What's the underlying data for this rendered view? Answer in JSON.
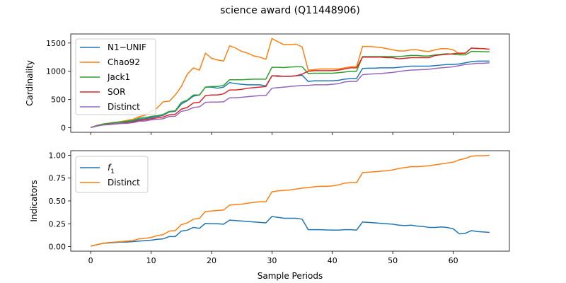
{
  "figure_title": "science award (Q11448906)",
  "chart_data": [
    {
      "type": "line",
      "xlabel": "",
      "ylabel": "Cardinality",
      "xlim": [
        -3.3,
        69.3
      ],
      "ylim": [
        -80,
        1660
      ],
      "xticks": [
        0,
        10,
        20,
        30,
        40,
        50,
        60
      ],
      "yticks": [
        0,
        500,
        1000,
        1500
      ],
      "ytick_labels": [
        "0",
        "500",
        "1000",
        "1500"
      ],
      "show_xtick_labels": false,
      "legend": "upper left",
      "grid": false,
      "series": [
        {
          "name": "N1−UNIF",
          "color": "#1f77b4",
          "x": [
            0,
            1,
            2,
            3,
            4,
            5,
            6,
            7,
            8,
            9,
            10,
            11,
            12,
            13,
            14,
            15,
            16,
            17,
            18,
            19,
            20,
            21,
            22,
            23,
            24,
            25,
            26,
            27,
            28,
            29,
            30,
            31,
            32,
            33,
            34,
            35,
            36,
            37,
            38,
            39,
            40,
            41,
            42,
            43,
            44,
            45,
            46,
            47,
            48,
            49,
            50,
            51,
            52,
            53,
            54,
            55,
            56,
            57,
            58,
            59,
            60,
            61,
            62,
            63,
            64,
            65,
            66
          ],
          "y": [
            5,
            35,
            60,
            75,
            90,
            100,
            105,
            115,
            150,
            160,
            180,
            200,
            220,
            280,
            290,
            420,
            480,
            560,
            580,
            720,
            720,
            700,
            720,
            800,
            780,
            770,
            760,
            760,
            760,
            740,
            920,
            920,
            910,
            910,
            920,
            930,
            820,
            830,
            830,
            830,
            830,
            840,
            860,
            870,
            870,
            1050,
            1055,
            1055,
            1060,
            1060,
            1060,
            1070,
            1080,
            1090,
            1090,
            1090,
            1090,
            1100,
            1110,
            1120,
            1120,
            1130,
            1150,
            1170,
            1180,
            1180,
            1180
          ]
        },
        {
          "name": "Chao92",
          "color": "#ff7f0e",
          "x": [
            0,
            1,
            2,
            3,
            4,
            5,
            6,
            7,
            8,
            9,
            10,
            11,
            12,
            13,
            14,
            15,
            16,
            17,
            18,
            19,
            20,
            21,
            22,
            23,
            24,
            25,
            26,
            27,
            28,
            29,
            30,
            31,
            32,
            33,
            34,
            35,
            36,
            37,
            38,
            39,
            40,
            41,
            42,
            43,
            44,
            45,
            46,
            47,
            48,
            49,
            50,
            51,
            52,
            53,
            54,
            55,
            56,
            57,
            58,
            59,
            60,
            61,
            62,
            63,
            64,
            65,
            66
          ],
          "y": [
            5,
            40,
            65,
            80,
            95,
            110,
            130,
            150,
            195,
            220,
            290,
            350,
            460,
            470,
            580,
            730,
            950,
            1060,
            1020,
            1320,
            1230,
            1200,
            1180,
            1450,
            1410,
            1350,
            1320,
            1270,
            1250,
            1210,
            1580,
            1520,
            1470,
            1470,
            1480,
            1430,
            1020,
            1030,
            1040,
            1040,
            1040,
            1040,
            1060,
            1080,
            1080,
            1440,
            1440,
            1430,
            1420,
            1400,
            1380,
            1360,
            1360,
            1380,
            1380,
            1360,
            1350,
            1380,
            1400,
            1400,
            1380,
            1310,
            1320,
            1410,
            1400,
            1400,
            1390
          ]
        },
        {
          "name": "Jack1",
          "color": "#2ca02c",
          "x": [
            0,
            1,
            2,
            3,
            4,
            5,
            6,
            7,
            8,
            9,
            10,
            11,
            12,
            13,
            14,
            15,
            16,
            17,
            18,
            19,
            20,
            21,
            22,
            23,
            24,
            25,
            26,
            27,
            28,
            29,
            30,
            31,
            32,
            33,
            34,
            35,
            36,
            37,
            38,
            39,
            40,
            41,
            42,
            43,
            44,
            45,
            46,
            47,
            48,
            49,
            50,
            51,
            52,
            53,
            54,
            55,
            56,
            57,
            58,
            59,
            60,
            61,
            62,
            63,
            64,
            65,
            66
          ],
          "y": [
            5,
            40,
            65,
            80,
            95,
            105,
            115,
            130,
            170,
            180,
            200,
            215,
            235,
            290,
            300,
            450,
            490,
            580,
            580,
            720,
            730,
            730,
            750,
            850,
            850,
            850,
            855,
            860,
            860,
            860,
            1070,
            1070,
            1065,
            1075,
            1080,
            1080,
            960,
            965,
            965,
            965,
            965,
            975,
            985,
            1000,
            1000,
            1260,
            1260,
            1260,
            1260,
            1260,
            1260,
            1260,
            1270,
            1280,
            1280,
            1270,
            1270,
            1290,
            1300,
            1310,
            1300,
            1290,
            1290,
            1350,
            1350,
            1345,
            1345
          ]
        },
        {
          "name": "SOR",
          "color": "#d62728",
          "x": [
            0,
            1,
            2,
            3,
            4,
            5,
            6,
            7,
            8,
            9,
            10,
            11,
            12,
            13,
            14,
            15,
            16,
            17,
            18,
            19,
            20,
            21,
            22,
            23,
            24,
            25,
            26,
            27,
            28,
            29,
            30,
            31,
            32,
            33,
            34,
            35,
            36,
            37,
            38,
            39,
            40,
            41,
            42,
            43,
            44,
            45,
            46,
            47,
            48,
            49,
            50,
            51,
            52,
            53,
            54,
            55,
            56,
            57,
            58,
            59,
            60,
            61,
            62,
            63,
            64,
            65,
            66
          ],
          "y": [
            5,
            30,
            50,
            60,
            70,
            80,
            90,
            100,
            130,
            140,
            160,
            175,
            190,
            230,
            240,
            330,
            360,
            440,
            450,
            570,
            580,
            580,
            600,
            670,
            670,
            680,
            700,
            710,
            720,
            730,
            920,
            910,
            910,
            910,
            920,
            950,
            1000,
            1010,
            1010,
            1010,
            1010,
            1020,
            1040,
            1060,
            1060,
            1250,
            1250,
            1250,
            1250,
            1240,
            1240,
            1220,
            1230,
            1240,
            1240,
            1240,
            1240,
            1280,
            1290,
            1300,
            1310,
            1320,
            1320,
            1410,
            1405,
            1400,
            1390
          ]
        },
        {
          "name": "Distinct",
          "color": "#9467bd",
          "x": [
            0,
            1,
            2,
            3,
            4,
            5,
            6,
            7,
            8,
            9,
            10,
            11,
            12,
            13,
            14,
            15,
            16,
            17,
            18,
            19,
            20,
            21,
            22,
            23,
            24,
            25,
            26,
            27,
            28,
            29,
            30,
            31,
            32,
            33,
            34,
            35,
            36,
            37,
            38,
            39,
            40,
            41,
            42,
            43,
            44,
            45,
            46,
            47,
            48,
            49,
            50,
            51,
            52,
            53,
            54,
            55,
            56,
            57,
            58,
            59,
            60,
            61,
            62,
            63,
            64,
            65,
            66
          ],
          "y": [
            5,
            30,
            50,
            55,
            65,
            75,
            80,
            90,
            115,
            120,
            140,
            150,
            160,
            200,
            205,
            290,
            310,
            360,
            370,
            450,
            455,
            455,
            460,
            530,
            530,
            540,
            550,
            560,
            570,
            570,
            700,
            710,
            720,
            730,
            740,
            750,
            750,
            760,
            760,
            760,
            770,
            780,
            810,
            820,
            820,
            940,
            950,
            955,
            960,
            970,
            980,
            995,
            1010,
            1020,
            1025,
            1030,
            1035,
            1050,
            1060,
            1070,
            1080,
            1100,
            1120,
            1130,
            1140,
            1140,
            1150
          ]
        }
      ]
    },
    {
      "type": "line",
      "xlabel": "Sample Periods",
      "ylabel": "Indicators",
      "xlim": [
        -3.3,
        69.3
      ],
      "ylim": [
        -0.05,
        1.05
      ],
      "xticks": [
        0,
        10,
        20,
        30,
        40,
        50,
        60
      ],
      "xtick_labels": [
        "0",
        "10",
        "20",
        "30",
        "40",
        "50",
        "60"
      ],
      "yticks": [
        0,
        0.25,
        0.5,
        0.75,
        1.0
      ],
      "ytick_labels": [
        "0.00",
        "0.25",
        "0.50",
        "0.75",
        "1.00"
      ],
      "show_xtick_labels": true,
      "legend": "upper left",
      "grid": false,
      "series": [
        {
          "name": "f1",
          "legend_main": "f",
          "legend_sub": "1",
          "color": "#1f77b4",
          "x": [
            0,
            1,
            2,
            3,
            4,
            5,
            6,
            7,
            8,
            9,
            10,
            11,
            12,
            13,
            14,
            15,
            16,
            17,
            18,
            19,
            20,
            21,
            22,
            23,
            24,
            25,
            26,
            27,
            28,
            29,
            30,
            31,
            32,
            33,
            34,
            35,
            36,
            37,
            38,
            39,
            40,
            41,
            42,
            43,
            44,
            45,
            46,
            47,
            48,
            49,
            50,
            51,
            52,
            53,
            54,
            55,
            56,
            57,
            58,
            59,
            60,
            61,
            62,
            63,
            64,
            65,
            66
          ],
          "y": [
            0.005,
            0.02,
            0.035,
            0.04,
            0.045,
            0.05,
            0.05,
            0.055,
            0.06,
            0.065,
            0.07,
            0.08,
            0.085,
            0.11,
            0.11,
            0.17,
            0.18,
            0.21,
            0.2,
            0.255,
            0.25,
            0.25,
            0.245,
            0.29,
            0.285,
            0.28,
            0.275,
            0.27,
            0.265,
            0.26,
            0.33,
            0.32,
            0.31,
            0.31,
            0.31,
            0.3,
            0.185,
            0.185,
            0.185,
            0.182,
            0.18,
            0.18,
            0.185,
            0.185,
            0.18,
            0.27,
            0.265,
            0.26,
            0.255,
            0.25,
            0.245,
            0.235,
            0.23,
            0.235,
            0.225,
            0.22,
            0.21,
            0.21,
            0.215,
            0.21,
            0.195,
            0.14,
            0.145,
            0.175,
            0.165,
            0.16,
            0.155
          ]
        },
        {
          "name": "Distinct",
          "legend_main": "Distinct",
          "legend_sub": "",
          "color": "#ff7f0e",
          "x": [
            0,
            1,
            2,
            3,
            4,
            5,
            6,
            7,
            8,
            9,
            10,
            11,
            12,
            13,
            14,
            15,
            16,
            17,
            18,
            19,
            20,
            21,
            22,
            23,
            24,
            25,
            26,
            27,
            28,
            29,
            30,
            31,
            32,
            33,
            34,
            35,
            36,
            37,
            38,
            39,
            40,
            41,
            42,
            43,
            44,
            45,
            46,
            47,
            48,
            49,
            50,
            51,
            52,
            53,
            54,
            55,
            56,
            57,
            58,
            59,
            60,
            61,
            62,
            63,
            64,
            65,
            66
          ],
          "y": [
            0.005,
            0.02,
            0.035,
            0.045,
            0.05,
            0.055,
            0.06,
            0.065,
            0.085,
            0.09,
            0.1,
            0.12,
            0.13,
            0.17,
            0.175,
            0.24,
            0.26,
            0.3,
            0.31,
            0.385,
            0.39,
            0.395,
            0.4,
            0.455,
            0.46,
            0.465,
            0.475,
            0.485,
            0.49,
            0.49,
            0.6,
            0.61,
            0.615,
            0.62,
            0.63,
            0.64,
            0.645,
            0.655,
            0.66,
            0.66,
            0.665,
            0.675,
            0.695,
            0.7,
            0.7,
            0.81,
            0.815,
            0.82,
            0.825,
            0.83,
            0.84,
            0.855,
            0.865,
            0.875,
            0.875,
            0.88,
            0.885,
            0.895,
            0.905,
            0.915,
            0.925,
            0.95,
            0.965,
            0.99,
            0.995,
            0.995,
            1.0
          ]
        }
      ]
    }
  ]
}
